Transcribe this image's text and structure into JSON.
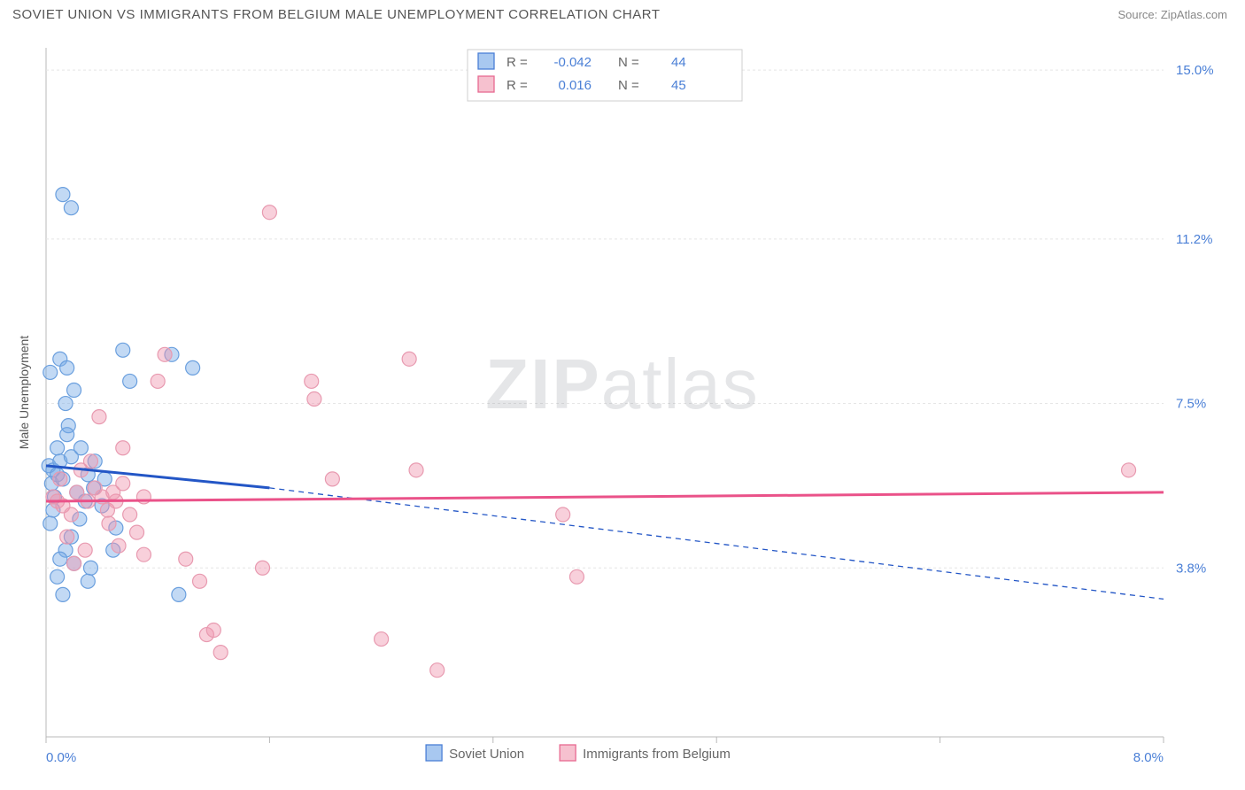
{
  "header": {
    "title": "SOVIET UNION VS IMMIGRANTS FROM BELGIUM MALE UNEMPLOYMENT CORRELATION CHART",
    "source_label": "Source: ",
    "source_link": "ZipAtlas.com"
  },
  "watermark": {
    "zip": "ZIP",
    "atlas": "atlas"
  },
  "chart": {
    "type": "scatter",
    "background_color": "#ffffff",
    "plot_border_color": "#b8b8b8",
    "grid_color": "#e5e5e5",
    "grid_dash": "3,3",
    "xaxis": {
      "min": 0.0,
      "max": 8.0,
      "ticks": [
        0.0,
        1.6,
        3.2,
        4.8,
        6.4,
        8.0
      ],
      "label_left": "0.0%",
      "label_right": "8.0%",
      "label_color": "#4a7fd6",
      "label_fontsize": 15,
      "tick_color": "#b8b8b8"
    },
    "yaxis": {
      "label": "Male Unemployment",
      "label_color": "#555555",
      "label_fontsize": 14,
      "min": 0.0,
      "max": 15.5,
      "ticks": [
        3.8,
        7.5,
        11.2,
        15.0
      ],
      "tick_labels": [
        "3.8%",
        "7.5%",
        "11.2%",
        "15.0%"
      ],
      "tick_label_color": "#4a7fd6",
      "tick_label_fontsize": 15
    },
    "legend_top": {
      "border_color": "#cfcfcf",
      "items": [
        {
          "swatch_fill": "#a8c8f0",
          "swatch_stroke": "#4a7fd6",
          "r_label": "R =",
          "r_value": "-0.042",
          "n_label": "N =",
          "n_value": "44"
        },
        {
          "swatch_fill": "#f6c1cf",
          "swatch_stroke": "#e86a91",
          "r_label": "R =",
          "r_value": "0.016",
          "n_label": "N =",
          "n_value": "45"
        }
      ],
      "text_color": "#666666",
      "value_color": "#4a7fd6",
      "fontsize": 15
    },
    "legend_bottom": {
      "items": [
        {
          "swatch_fill": "#a8c8f0",
          "swatch_stroke": "#4a7fd6",
          "label": "Soviet Union"
        },
        {
          "swatch_fill": "#f6c1cf",
          "swatch_stroke": "#e86a91",
          "label": "Immigrants from Belgium"
        }
      ],
      "text_color": "#666666",
      "fontsize": 15
    },
    "series": [
      {
        "name": "Soviet Union",
        "marker_fill": "rgba(120,170,230,0.45)",
        "marker_stroke": "#6a9fde",
        "marker_r": 8,
        "trend": {
          "color": "#2356c6",
          "width": 3,
          "x0": 0.0,
          "y0": 6.1,
          "x1": 1.6,
          "y1": 5.6,
          "x1_ext": 8.0,
          "y1_ext": 3.1
        },
        "points": [
          [
            0.02,
            6.1
          ],
          [
            0.05,
            6.0
          ],
          [
            0.04,
            5.7
          ],
          [
            0.06,
            5.4
          ],
          [
            0.08,
            5.9
          ],
          [
            0.03,
            8.2
          ],
          [
            0.1,
            8.5
          ],
          [
            0.12,
            12.2
          ],
          [
            0.18,
            11.9
          ],
          [
            0.15,
            8.3
          ],
          [
            0.14,
            7.5
          ],
          [
            0.2,
            7.8
          ],
          [
            0.16,
            7.0
          ],
          [
            0.08,
            6.5
          ],
          [
            0.1,
            6.2
          ],
          [
            0.12,
            5.8
          ],
          [
            0.22,
            5.5
          ],
          [
            0.28,
            5.3
          ],
          [
            0.3,
            5.9
          ],
          [
            0.34,
            5.6
          ],
          [
            0.24,
            4.9
          ],
          [
            0.18,
            4.5
          ],
          [
            0.14,
            4.2
          ],
          [
            0.1,
            4.0
          ],
          [
            0.2,
            3.9
          ],
          [
            0.32,
            3.8
          ],
          [
            0.3,
            3.5
          ],
          [
            0.08,
            3.6
          ],
          [
            0.12,
            3.2
          ],
          [
            0.55,
            8.7
          ],
          [
            0.6,
            8.0
          ],
          [
            0.9,
            8.6
          ],
          [
            1.05,
            8.3
          ],
          [
            0.95,
            3.2
          ],
          [
            0.5,
            4.7
          ],
          [
            0.48,
            4.2
          ],
          [
            0.4,
            5.2
          ],
          [
            0.42,
            5.8
          ],
          [
            0.05,
            5.1
          ],
          [
            0.03,
            4.8
          ],
          [
            0.15,
            6.8
          ],
          [
            0.18,
            6.3
          ],
          [
            0.25,
            6.5
          ],
          [
            0.35,
            6.2
          ]
        ]
      },
      {
        "name": "Immigrants from Belgium",
        "marker_fill": "rgba(240,150,175,0.45)",
        "marker_stroke": "#e89ab0",
        "marker_r": 8,
        "trend": {
          "color": "#ea5289",
          "width": 3,
          "x0": 0.0,
          "y0": 5.3,
          "x1": 8.0,
          "y1": 5.5
        },
        "points": [
          [
            0.05,
            5.4
          ],
          [
            0.08,
            5.3
          ],
          [
            0.12,
            5.2
          ],
          [
            0.18,
            5.0
          ],
          [
            0.22,
            5.5
          ],
          [
            0.3,
            5.3
          ],
          [
            0.35,
            5.6
          ],
          [
            0.4,
            5.4
          ],
          [
            0.44,
            5.1
          ],
          [
            0.25,
            6.0
          ],
          [
            0.32,
            6.2
          ],
          [
            0.38,
            7.2
          ],
          [
            0.5,
            5.3
          ],
          [
            0.55,
            5.7
          ],
          [
            0.6,
            5.0
          ],
          [
            0.65,
            4.6
          ],
          [
            0.7,
            4.1
          ],
          [
            0.52,
            4.3
          ],
          [
            0.8,
            8.0
          ],
          [
            0.85,
            8.6
          ],
          [
            1.0,
            4.0
          ],
          [
            1.1,
            3.5
          ],
          [
            1.15,
            2.3
          ],
          [
            1.2,
            2.4
          ],
          [
            1.25,
            1.9
          ],
          [
            1.55,
            3.8
          ],
          [
            1.6,
            11.8
          ],
          [
            1.9,
            8.0
          ],
          [
            1.92,
            7.6
          ],
          [
            2.05,
            5.8
          ],
          [
            2.4,
            2.2
          ],
          [
            2.6,
            8.5
          ],
          [
            2.65,
            6.0
          ],
          [
            2.8,
            1.5
          ],
          [
            3.7,
            5.0
          ],
          [
            3.8,
            3.6
          ],
          [
            0.15,
            4.5
          ],
          [
            0.2,
            3.9
          ],
          [
            0.28,
            4.2
          ],
          [
            0.45,
            4.8
          ],
          [
            0.1,
            5.8
          ],
          [
            0.55,
            6.5
          ],
          [
            7.75,
            6.0
          ],
          [
            0.7,
            5.4
          ],
          [
            0.48,
            5.5
          ]
        ]
      }
    ]
  }
}
